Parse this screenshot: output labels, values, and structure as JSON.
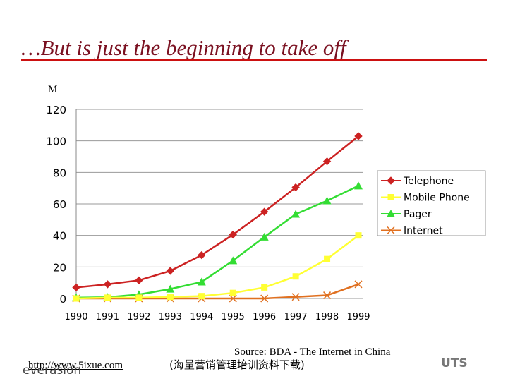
{
  "chart_data": {
    "type": "line",
    "title": "…But is just the beginning to take off",
    "y_label": "M",
    "categories": [
      "1990",
      "1991",
      "1992",
      "1993",
      "1994",
      "1995",
      "1996",
      "1997",
      "1998",
      "1999"
    ],
    "series": [
      {
        "name": "Telephone",
        "color": "#cc2222",
        "marker": "diamond",
        "values": [
          7,
          9,
          11.5,
          17.5,
          27.5,
          40.5,
          55,
          70.5,
          87,
          103
        ]
      },
      {
        "name": "Mobile Phone",
        "color": "#ffff33",
        "marker": "square",
        "values": [
          0,
          0.5,
          0.5,
          1,
          1.5,
          3.5,
          7,
          14,
          25,
          40
        ]
      },
      {
        "name": "Pager",
        "color": "#33dd33",
        "marker": "triangle",
        "values": [
          0.5,
          0.8,
          2.5,
          6,
          10.5,
          24,
          39,
          53.5,
          62,
          71.5
        ]
      },
      {
        "name": "Internet",
        "color": "#e07020",
        "marker": "x",
        "values": [
          0,
          0,
          0,
          0,
          0,
          0,
          0,
          1,
          2,
          9
        ]
      }
    ],
    "ylim": [
      0,
      120
    ],
    "yticks": [
      0,
      20,
      40,
      60,
      80,
      100,
      120
    ],
    "grid": true,
    "legend": "right",
    "source": "Source: BDA - The Internet in China",
    "url": "http://www.5ixue.com",
    "note": "(海量营销管理培训资料下载)",
    "logo_left": "everasion",
    "logo_right": "UTS"
  }
}
